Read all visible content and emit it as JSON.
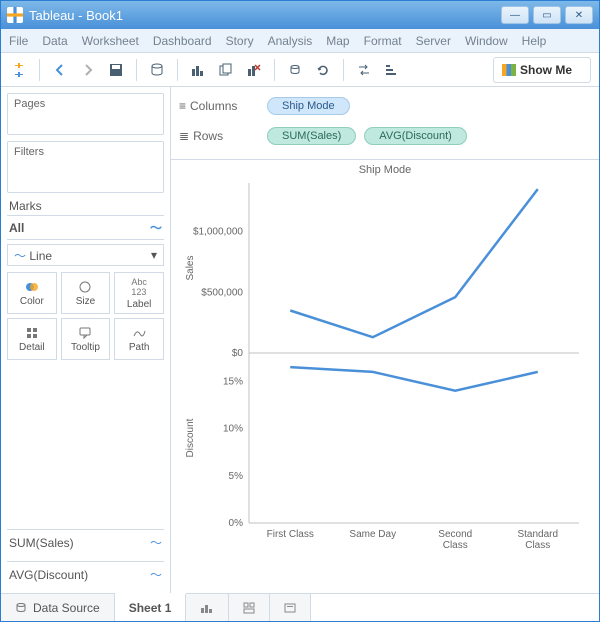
{
  "window": {
    "title": "Tableau - Book1"
  },
  "menu": [
    "File",
    "Data",
    "Worksheet",
    "Dashboard",
    "Story",
    "Analysis",
    "Map",
    "Format",
    "Server",
    "Window",
    "Help"
  ],
  "toolbar": {
    "showme": "Show Me"
  },
  "panels": {
    "pages": "Pages",
    "filters": "Filters",
    "marks": "Marks",
    "all": "All",
    "marktype": "Line",
    "cards": [
      "Color",
      "Size",
      "Label",
      "Detail",
      "Tooltip",
      "Path"
    ],
    "measures": [
      "SUM(Sales)",
      "AVG(Discount)"
    ]
  },
  "shelves": {
    "columns_label": "Columns",
    "rows_label": "Rows",
    "columns": [
      "Ship Mode"
    ],
    "rows": [
      "SUM(Sales)",
      "AVG(Discount)"
    ]
  },
  "chart": {
    "title": "Ship Mode",
    "categories": [
      "First Class",
      "Same Day",
      "Second\nClass",
      "Standard\nClass"
    ],
    "sales": {
      "axis_label": "Sales",
      "ticks": [
        0,
        500000,
        1000000
      ],
      "tick_labels": [
        "$0",
        "$500,000",
        "$1,000,000"
      ],
      "ylim": [
        0,
        1400000
      ],
      "values": [
        350000,
        130000,
        460000,
        1350000
      ],
      "line_color": "#4a90d9"
    },
    "discount": {
      "axis_label": "Discount",
      "ticks": [
        0,
        5,
        10,
        15
      ],
      "tick_labels": [
        "0%",
        "5%",
        "10%",
        "15%"
      ],
      "ylim": [
        0,
        18
      ],
      "values": [
        16.5,
        16,
        14,
        16
      ],
      "line_color": "#4a90d9"
    },
    "colors": {
      "axis": "#c0c0c0",
      "text": "#666",
      "bg": "#ffffff"
    }
  },
  "bottom": {
    "datasource": "Data Source",
    "sheet": "Sheet 1"
  }
}
